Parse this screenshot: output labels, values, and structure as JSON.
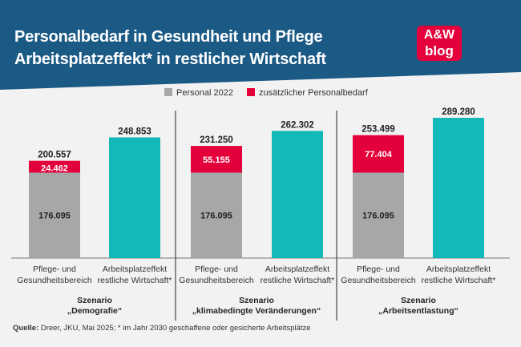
{
  "header": {
    "title_line1": "Personalbedarf in Gesundheit und Pflege",
    "title_line2": "Arbeitsplatzeffekt* in restlicher Wirtschaft",
    "logo_line1": "A&W",
    "logo_line2": "blog"
  },
  "colors": {
    "banner": "#1c5a86",
    "personal": "#a7a7a7",
    "additional": "#e3003b",
    "other_economy": "#13b8b8",
    "logo": "#e3003b"
  },
  "chart_data": {
    "type": "bar",
    "stacked": true,
    "legend": [
      {
        "name": "Personal 2022",
        "color": "#a7a7a7"
      },
      {
        "name": "zusätzlicher Personalbedarf",
        "color": "#e3003b"
      }
    ],
    "ymax": 289280,
    "groups": [
      {
        "scenario_label": "Szenario",
        "scenario_name": "„Demografie“",
        "bars": [
          {
            "label1": "Pflege- und",
            "label2": "Gesundheitsbereich",
            "base": 176095,
            "base_label": "176.095",
            "add": 24462,
            "add_label": "24.462",
            "total": 200557,
            "total_label": "200.557",
            "kind": "stacked"
          },
          {
            "label1": "Arbeitsplatzeffekt",
            "label2": "restliche Wirtschaft*",
            "total": 248853,
            "total_label": "248.853",
            "kind": "single"
          }
        ]
      },
      {
        "scenario_label": "Szenario",
        "scenario_name": "„klimabedingte Veränderungen“",
        "bars": [
          {
            "label1": "Pflege- und",
            "label2": "Gesundheitsbereich",
            "base": 176095,
            "base_label": "176.095",
            "add": 55155,
            "add_label": "55.155",
            "total": 231250,
            "total_label": "231.250",
            "kind": "stacked"
          },
          {
            "label1": "Arbeitsplatzeffekt",
            "label2": "restliche Wirtschaft*",
            "total": 262302,
            "total_label": "262.302",
            "kind": "single"
          }
        ]
      },
      {
        "scenario_label": "Szenario",
        "scenario_name": "„Arbeitsentlastung“",
        "bars": [
          {
            "label1": "Pflege- und",
            "label2": "Gesundheitsbereich",
            "base": 176095,
            "base_label": "176.095",
            "add": 77404,
            "add_label": "77.404",
            "total": 253499,
            "total_label": "253.499",
            "kind": "stacked"
          },
          {
            "label1": "Arbeitsplatzeffekt",
            "label2": "restliche Wirtschaft*",
            "total": 289280,
            "total_label": "289.280",
            "kind": "single"
          }
        ]
      }
    ]
  },
  "source": {
    "label": "Quelle:",
    "text": " Dreer, JKU, Mai 2025; * im Jahr 2030 geschaffene oder gesicherte Arbeitsplätze"
  }
}
